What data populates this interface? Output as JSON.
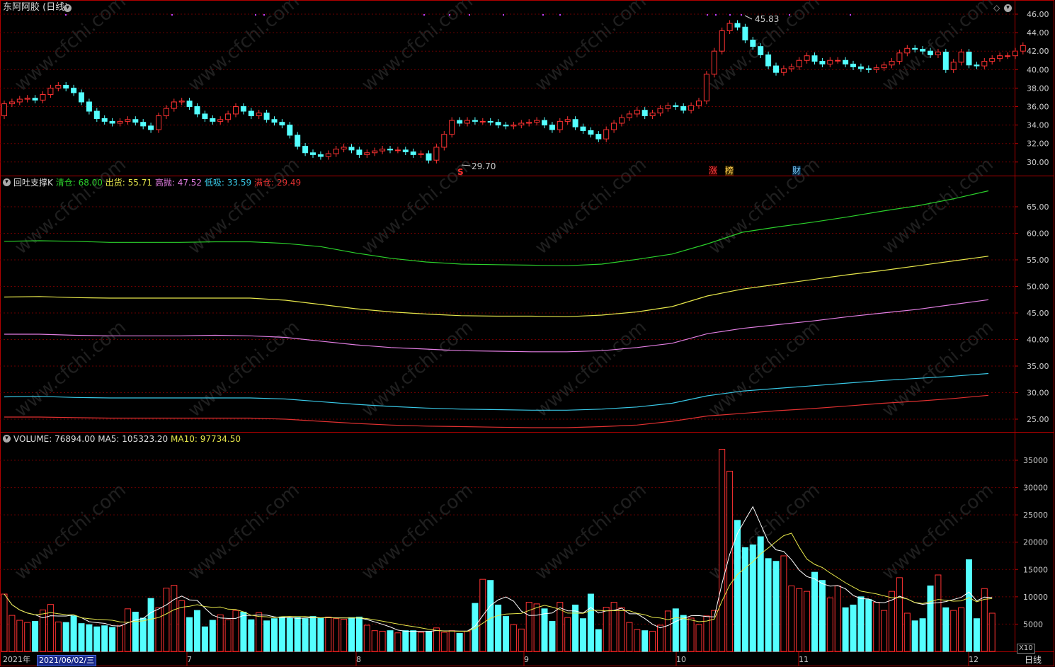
{
  "stock": {
    "title": "东阿阿胶 (日线)"
  },
  "price_panel": {
    "y_ticks": [
      "46.00",
      "44.00",
      "42.00",
      "40.00",
      "38.00",
      "36.00",
      "34.00",
      "32.00",
      "30.00"
    ],
    "high_label": "45.83",
    "low_label": "29.70",
    "marker_s": "S",
    "markers": [
      "涨",
      "榜",
      "财"
    ]
  },
  "indicator_panel": {
    "name": "回吐支撑K",
    "lines": [
      {
        "label": "清仓:",
        "value": "68.00",
        "color": "#2bd02b"
      },
      {
        "label": "出货:",
        "value": "55.71",
        "color": "#e6e64a"
      },
      {
        "label": "高抛:",
        "value": "47.52",
        "color": "#e27ee2"
      },
      {
        "label": "低吸:",
        "value": "33.59",
        "color": "#39c8e6"
      },
      {
        "label": "满仓:",
        "value": "29.49",
        "color": "#e03030"
      }
    ],
    "y_ticks": [
      "65.00",
      "60.00",
      "55.00",
      "50.00",
      "45.00",
      "40.00",
      "35.00",
      "30.00",
      "25.00"
    ]
  },
  "volume_panel": {
    "label": "VOLUME:",
    "value": "76894.00",
    "ma5_label": "MA5:",
    "ma5_value": "105323.20",
    "ma10_label": "MA10:",
    "ma10_value": "97734.50",
    "y_ticks": [
      "35000",
      "30000",
      "25000",
      "20000",
      "15000",
      "10000",
      "5000"
    ],
    "multiplier": "X10"
  },
  "x_axis": {
    "year": "2021年",
    "date_box": "2021/06/02/三",
    "months": [
      "7",
      "8",
      "9",
      "10",
      "11",
      "12"
    ],
    "period": "日线"
  },
  "colors": {
    "up": "#ff3232",
    "down": "#54ffff",
    "frame": "#b00000",
    "grid": "#6a0000"
  },
  "chart_data": {
    "type": "candlestick",
    "closes": [
      36.3,
      36.5,
      36.8,
      36.9,
      36.7,
      37.3,
      38.0,
      38.3,
      38.0,
      37.5,
      36.5,
      35.5,
      34.7,
      34.4,
      34.2,
      34.4,
      34.6,
      34.3,
      33.9,
      33.5,
      35.0,
      35.8,
      36.5,
      36.6,
      36.0,
      35.2,
      34.7,
      34.4,
      34.6,
      35.2,
      36.0,
      35.5,
      35.0,
      35.3,
      34.6,
      34.3,
      34.0,
      32.9,
      31.7,
      31.0,
      30.8,
      30.6,
      30.9,
      31.4,
      31.6,
      31.3,
      30.8,
      31.0,
      31.2,
      31.4,
      31.3,
      31.3,
      31.1,
      30.8,
      30.9,
      30.2,
      31.6,
      33.0,
      34.5,
      34.2,
      34.5,
      34.4,
      34.4,
      34.3,
      34.0,
      33.9,
      34.0,
      34.2,
      34.3,
      34.5,
      34.0,
      33.5,
      34.4,
      34.6,
      33.8,
      33.4,
      33.0,
      32.5,
      33.5,
      34.2,
      34.8,
      35.2,
      35.6,
      35.0,
      35.3,
      35.8,
      36.1,
      36.0,
      35.6,
      36.1,
      36.6,
      39.5,
      42.0,
      44.2,
      45.0,
      44.6,
      43.2,
      42.5,
      41.6,
      40.4,
      39.7,
      40.1,
      40.3,
      41.0,
      41.5,
      40.9,
      40.6,
      41.0,
      41.0,
      40.6,
      40.3,
      40.1,
      40.0,
      40.2,
      40.5,
      40.9,
      41.8,
      42.3,
      42.2,
      42.0,
      41.6,
      41.9,
      40.0,
      40.8,
      41.9,
      40.5,
      40.4,
      40.9,
      41.2,
      41.5,
      41.5,
      42.0,
      42.6
    ],
    "opens": [
      35.0,
      36.3,
      36.5,
      36.8,
      36.9,
      36.7,
      37.3,
      38.0,
      38.3,
      38.0,
      37.5,
      36.5,
      35.5,
      34.7,
      34.4,
      34.2,
      34.4,
      34.6,
      34.3,
      33.9,
      33.5,
      35.0,
      35.8,
      36.5,
      36.6,
      36.0,
      35.2,
      34.7,
      34.4,
      34.6,
      35.2,
      36.0,
      35.5,
      35.0,
      35.3,
      34.6,
      34.3,
      34.0,
      32.9,
      31.7,
      31.0,
      30.8,
      30.6,
      30.9,
      31.4,
      31.6,
      31.3,
      30.8,
      31.0,
      31.2,
      31.4,
      31.3,
      31.3,
      31.1,
      30.8,
      30.9,
      30.2,
      31.6,
      33.0,
      34.5,
      34.2,
      34.5,
      34.4,
      34.4,
      34.3,
      34.0,
      33.9,
      34.0,
      34.2,
      34.3,
      34.5,
      34.0,
      33.5,
      34.4,
      34.6,
      33.8,
      33.4,
      33.0,
      32.5,
      33.5,
      34.2,
      34.8,
      35.2,
      35.6,
      35.0,
      35.3,
      35.8,
      36.1,
      36.0,
      35.6,
      36.1,
      36.6,
      39.5,
      42.0,
      44.2,
      45.0,
      44.6,
      43.2,
      42.5,
      41.6,
      40.4,
      39.7,
      40.1,
      40.3,
      41.0,
      41.5,
      40.9,
      40.6,
      41.0,
      41.0,
      40.6,
      40.3,
      40.1,
      40.0,
      40.2,
      40.5,
      40.9,
      41.8,
      42.3,
      42.2,
      42.0,
      41.6,
      41.9,
      40.0,
      40.8,
      41.9,
      40.5,
      40.4,
      40.9,
      41.2,
      41.5,
      41.5,
      42.0
    ],
    "volumes": [
      10500,
      6600,
      5700,
      5300,
      5500,
      7600,
      8600,
      5400,
      5300,
      6500,
      5100,
      4900,
      4500,
      4700,
      4400,
      4700,
      7800,
      7200,
      6100,
      9700,
      8000,
      11600,
      12100,
      9300,
      6200,
      7500,
      4500,
      5700,
      6700,
      5800,
      7500,
      7200,
      5800,
      7100,
      5600,
      6000,
      6300,
      6100,
      6200,
      6000,
      6400,
      6100,
      6300,
      6000,
      5900,
      6200,
      6300,
      4800,
      3800,
      3700,
      3800,
      3400,
      3800,
      3800,
      3500,
      3700,
      4300,
      3500,
      3800,
      3300,
      3700,
      8800,
      13200,
      13000,
      8500,
      6400,
      4900,
      4100,
      9000,
      8700,
      7800,
      5500,
      9000,
      6200,
      8500,
      6000,
      10500,
      4000,
      8100,
      9000,
      8000,
      5300,
      4000,
      3800,
      3700,
      4800,
      7400,
      7800,
      6600,
      6100,
      4900,
      6500,
      7500,
      37000,
      33000,
      24000,
      19000,
      19500,
      21000,
      17000,
      16500,
      17500,
      12000,
      11500,
      11000,
      14500,
      13000,
      9800,
      12000,
      8000,
      8500,
      10000,
      9500,
      9000,
      7500,
      11000,
      13500,
      7000,
      5600,
      6000,
      12000,
      14000,
      8000,
      7500,
      8000,
      16800,
      6000,
      11500,
      7000
    ],
    "x_range": [
      0,
      130
    ],
    "y_range": [
      29.0,
      46.6
    ],
    "indicator_lines": {
      "qingcang": [
        58.5,
        58.6,
        58.5,
        58.3,
        58.3,
        58.3,
        58.4,
        58.4,
        58.1,
        57.5,
        56.3,
        55.3,
        54.6,
        54.2,
        54.1,
        54.0,
        53.9,
        54.2,
        55.1,
        56.1,
        58.0,
        60.2,
        61.2,
        62.1,
        63.1,
        64.2,
        65.2,
        66.5,
        68.0
      ],
      "chuhuo": [
        48.0,
        48.1,
        47.9,
        47.8,
        47.8,
        47.8,
        47.8,
        47.8,
        47.4,
        46.6,
        45.8,
        45.2,
        44.8,
        44.5,
        44.4,
        44.4,
        44.3,
        44.6,
        45.2,
        46.2,
        48.2,
        49.5,
        50.4,
        51.3,
        52.2,
        53.0,
        53.9,
        54.8,
        55.7
      ],
      "gaopao": [
        41.0,
        41.0,
        40.8,
        40.7,
        40.7,
        40.7,
        40.8,
        40.7,
        40.4,
        39.7,
        39.0,
        38.5,
        38.2,
        37.9,
        37.8,
        37.7,
        37.7,
        37.9,
        38.5,
        39.3,
        41.1,
        42.1,
        42.8,
        43.5,
        44.3,
        45.0,
        45.7,
        46.6,
        47.5
      ],
      "dixi": [
        29.2,
        29.3,
        29.1,
        29.0,
        29.0,
        29.0,
        29.0,
        29.0,
        28.8,
        28.3,
        27.8,
        27.4,
        27.1,
        26.9,
        26.8,
        26.7,
        26.7,
        26.9,
        27.3,
        28.0,
        29.4,
        30.3,
        30.8,
        31.3,
        31.8,
        32.3,
        32.7,
        33.1,
        33.6
      ],
      "mancang": [
        25.4,
        25.4,
        25.3,
        25.2,
        25.2,
        25.2,
        25.2,
        25.2,
        25.0,
        24.6,
        24.2,
        23.9,
        23.7,
        23.6,
        23.5,
        23.4,
        23.4,
        23.6,
        23.9,
        24.6,
        25.6,
        26.1,
        26.6,
        27.0,
        27.5,
        28.0,
        28.4,
        28.9,
        29.5
      ]
    }
  }
}
